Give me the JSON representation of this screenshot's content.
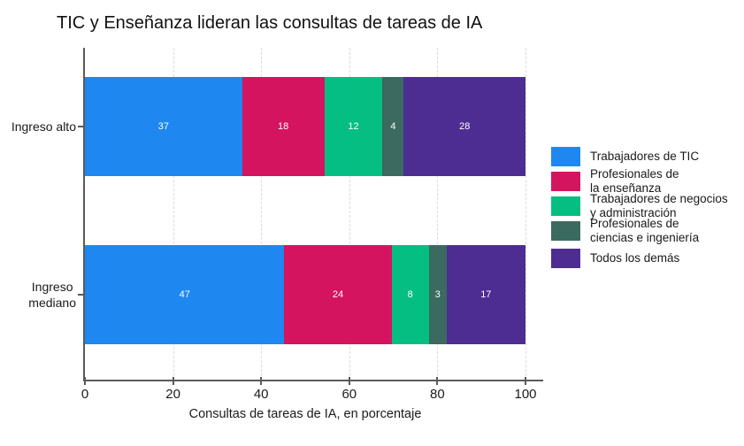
{
  "title": "TIC y Enseñanza lideran las consultas de tareas de IA",
  "chart_data": {
    "type": "bar",
    "orientation": "horizontal",
    "stacked": true,
    "title": "TIC y Enseñanza lideran las consultas de tareas de IA",
    "xlabel": "Consultas de tareas de IA, en porcentaje",
    "xlim": [
      0,
      100
    ],
    "xticks": [
      "0",
      "20",
      "40",
      "60",
      "80",
      "100"
    ],
    "grid": "vertical-dashed",
    "legend_position": "right",
    "bar_value_labels": true,
    "categories": [
      {
        "name": "Ingreso alto",
        "label_lines": [
          "Ingreso alto"
        ]
      },
      {
        "name": "Ingreso mediano",
        "label_lines": [
          "Ingreso",
          "mediano"
        ]
      }
    ],
    "series": [
      {
        "name": "Trabajadores de TIC",
        "legend_lines": [
          "Trabajadores de TIC"
        ],
        "color": "#1E87F0",
        "values": [
          37,
          47
        ]
      },
      {
        "name": "Profesionales de la enseñanza",
        "legend_lines": [
          "Profesionales de",
          "la enseñanza"
        ],
        "color": "#D4145E",
        "values": [
          18,
          24
        ]
      },
      {
        "name": "Trabajadores de negocios y administración",
        "legend_lines": [
          "Trabajadores de negocios",
          "y administración"
        ],
        "color": "#04BE82",
        "values": [
          12,
          8
        ]
      },
      {
        "name": "Profesionales de ciencias e ingeniería",
        "legend_lines": [
          "Profesionales de",
          "ciencias e ingeniería"
        ],
        "color": "#3B6A60",
        "values": [
          4,
          3
        ]
      },
      {
        "name": "Todos los demás",
        "legend_lines": [
          "Todos los demás"
        ],
        "color": "#4E2D92",
        "values": [
          28,
          17
        ]
      }
    ]
  },
  "colors": {
    "axis": "#5A5A5A",
    "grid": "#DCDCDC",
    "text": "#1A1A1A",
    "bar_label": "#FFFFFF"
  }
}
